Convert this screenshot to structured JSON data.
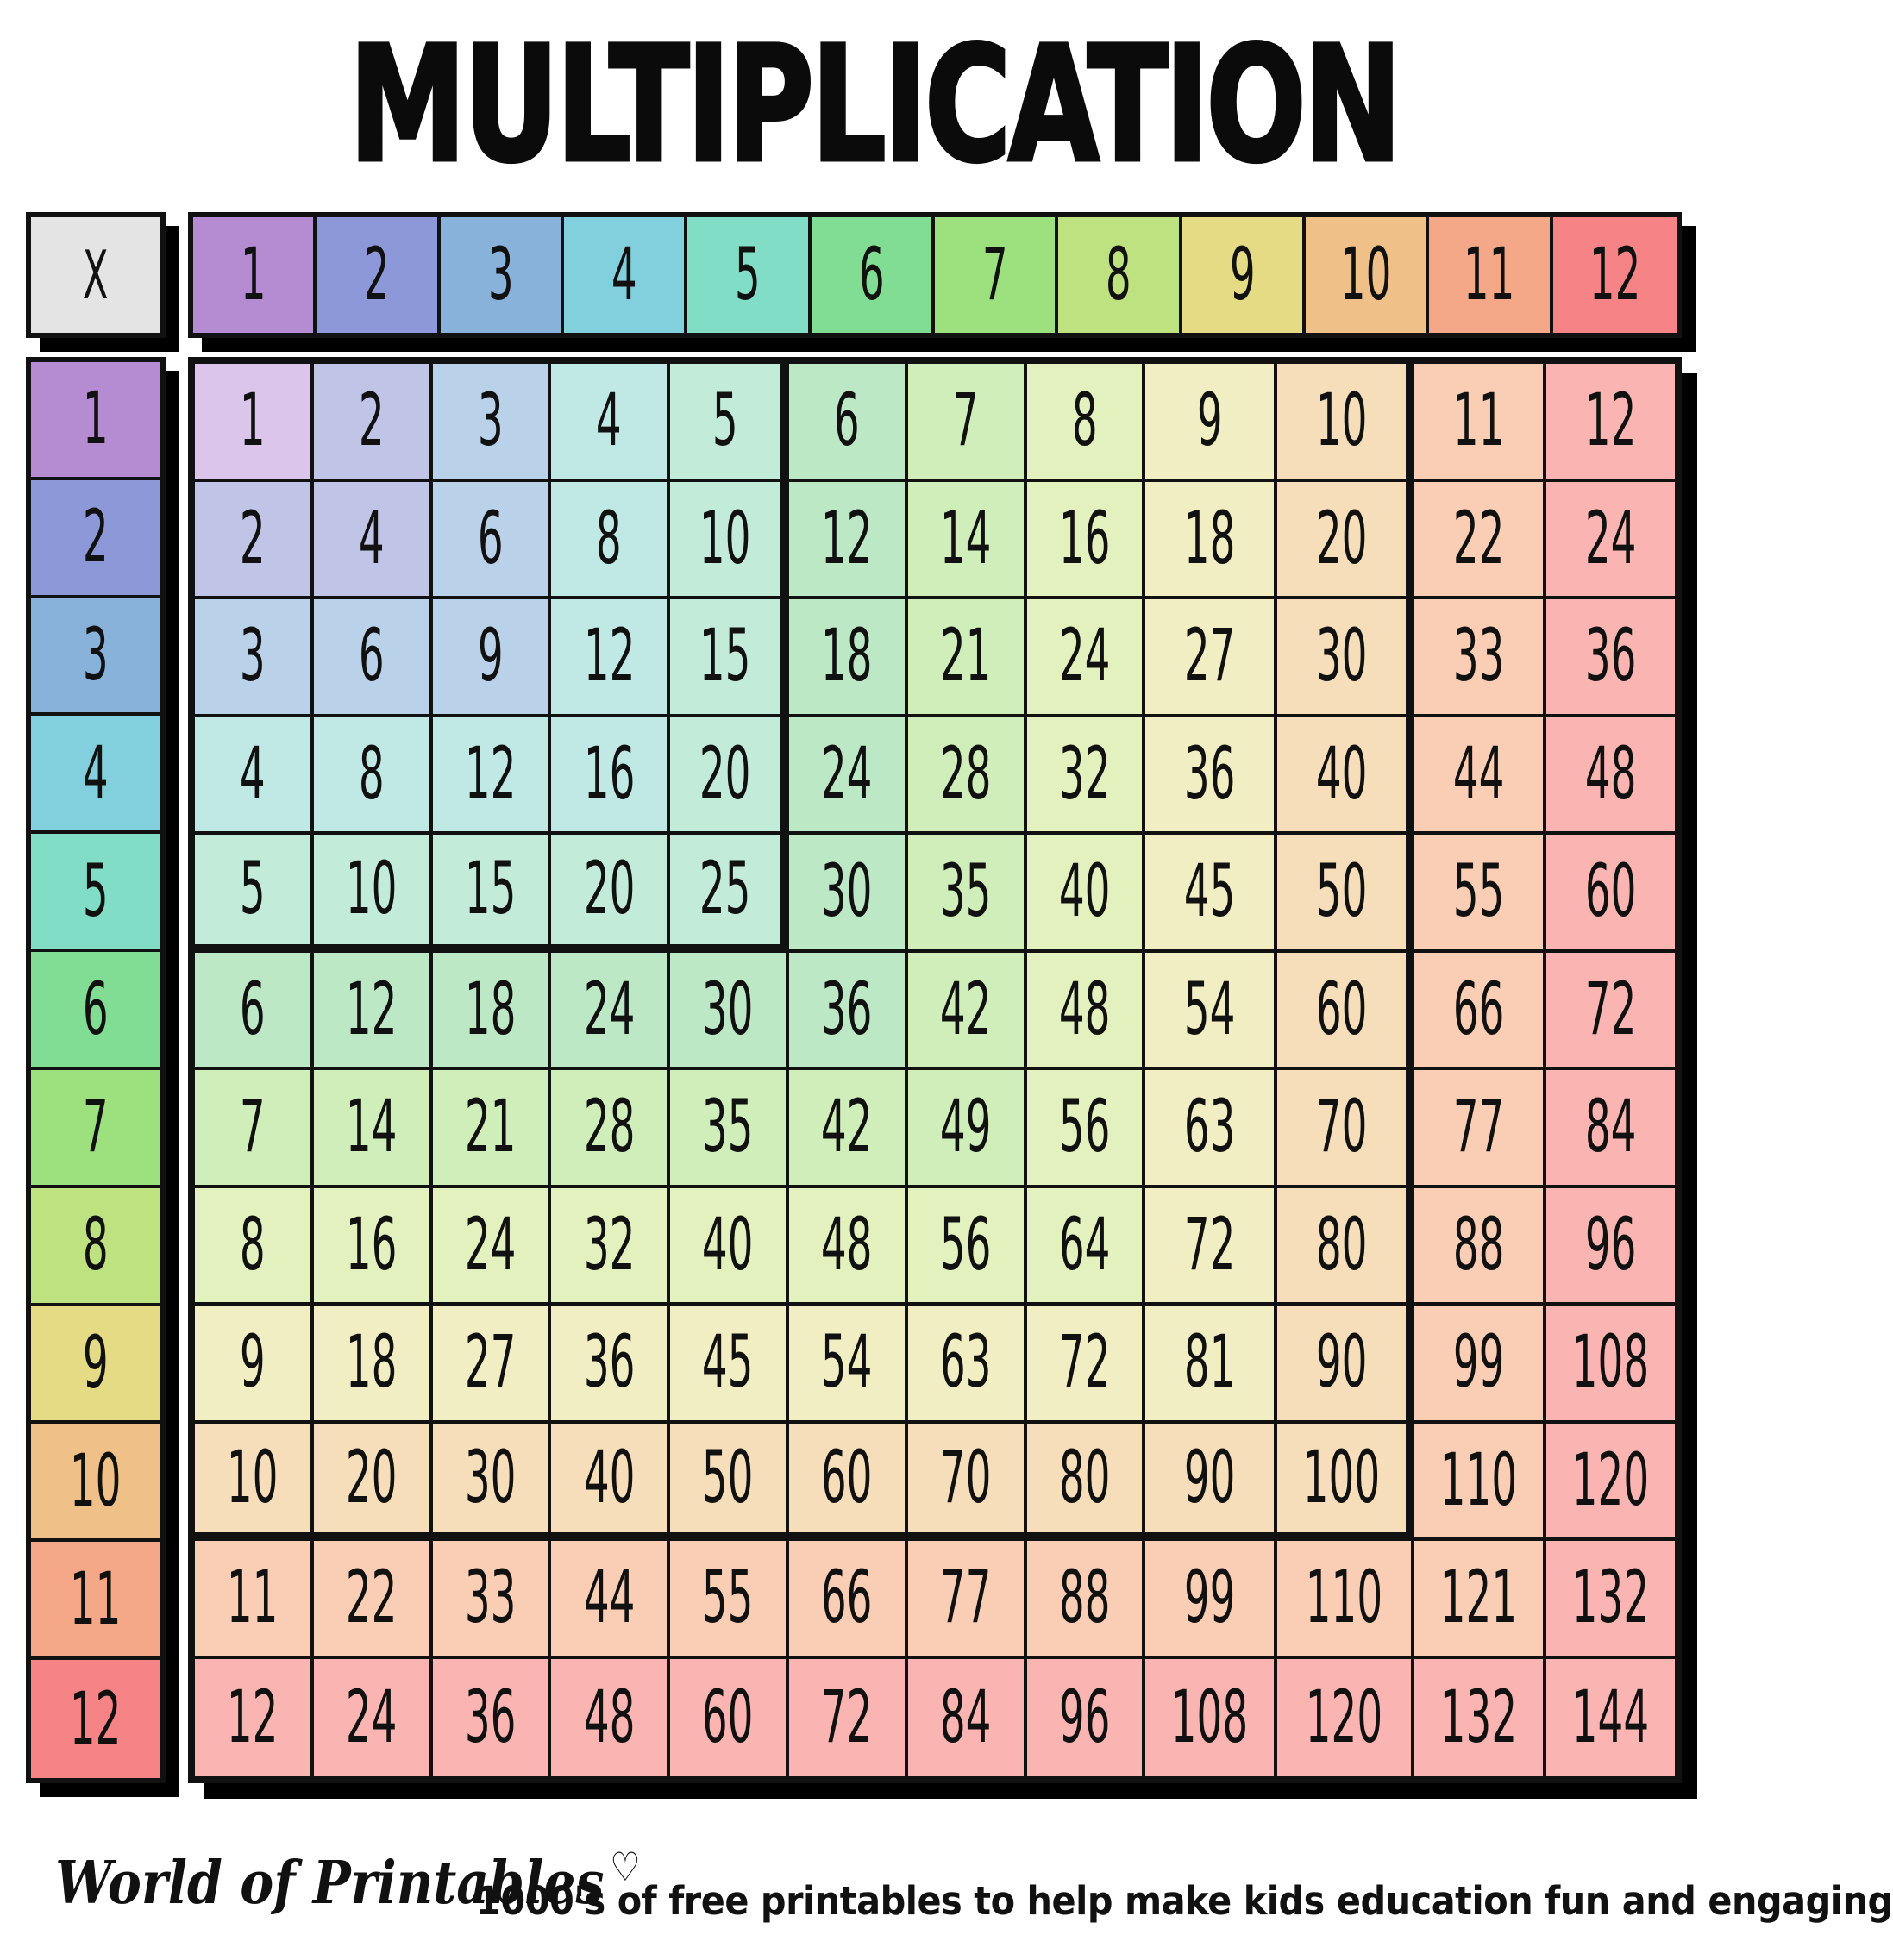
{
  "page": {
    "title": "MULTIPLICATION",
    "background": "#ffffff"
  },
  "chart_data": {
    "type": "table",
    "title": "MULTIPLICATION",
    "corner_label": "X",
    "column_headers": [
      "1",
      "2",
      "3",
      "4",
      "5",
      "6",
      "7",
      "8",
      "9",
      "10",
      "11",
      "12"
    ],
    "row_headers": [
      "1",
      "2",
      "3",
      "4",
      "5",
      "6",
      "7",
      "8",
      "9",
      "10",
      "11",
      "12"
    ],
    "rows": [
      [
        1,
        2,
        3,
        4,
        5,
        6,
        7,
        8,
        9,
        10,
        11,
        12
      ],
      [
        2,
        4,
        6,
        8,
        10,
        12,
        14,
        16,
        18,
        20,
        22,
        24
      ],
      [
        3,
        6,
        9,
        12,
        15,
        18,
        21,
        24,
        27,
        30,
        33,
        36
      ],
      [
        4,
        8,
        12,
        16,
        20,
        24,
        28,
        32,
        36,
        40,
        44,
        48
      ],
      [
        5,
        10,
        15,
        20,
        25,
        30,
        35,
        40,
        45,
        50,
        55,
        60
      ],
      [
        6,
        12,
        18,
        24,
        30,
        36,
        42,
        48,
        54,
        60,
        66,
        72
      ],
      [
        7,
        14,
        21,
        28,
        35,
        42,
        49,
        56,
        63,
        70,
        77,
        84
      ],
      [
        8,
        16,
        24,
        32,
        40,
        48,
        56,
        64,
        72,
        80,
        88,
        96
      ],
      [
        9,
        18,
        27,
        36,
        45,
        54,
        63,
        72,
        81,
        90,
        99,
        108
      ],
      [
        10,
        20,
        30,
        40,
        50,
        60,
        70,
        80,
        90,
        100,
        110,
        120
      ],
      [
        11,
        22,
        33,
        44,
        55,
        66,
        77,
        88,
        99,
        110,
        121,
        132
      ],
      [
        12,
        24,
        36,
        48,
        60,
        72,
        84,
        96,
        108,
        120,
        132,
        144
      ]
    ],
    "layout_hints": {
      "thick_outline_blocks": [
        "rows 1-5 x cols 1-5",
        "rows 1-10 x cols 1-10"
      ],
      "cell_color_rule": "pale rainbow tint of max(row, col); header strips use vivid rainbow"
    }
  },
  "colors": {
    "border": "#111111",
    "shadow": "#000000",
    "corner_bg": "#e4e4e4",
    "vivid": [
      "#b58cd2",
      "#8c98d8",
      "#89b2da",
      "#82cfdd",
      "#82ddc7",
      "#81dd93",
      "#9ce17d",
      "#bfe280",
      "#e5db84",
      "#efc189",
      "#f4a887",
      "#f68486"
    ],
    "pale": [
      "#dbc5ea",
      "#c0c5e8",
      "#b9d2ea",
      "#c0e9e6",
      "#c3ebda",
      "#bce8c5",
      "#cfeeb9",
      "#e2f1bd",
      "#f2eec3",
      "#f5deb9",
      "#f9ceb5",
      "#fab4b1"
    ]
  },
  "footer": {
    "brand": "World of Printables",
    "heart_icon": "♡",
    "tagline": "1000's of free printables to help make kids education fun and engaging"
  }
}
